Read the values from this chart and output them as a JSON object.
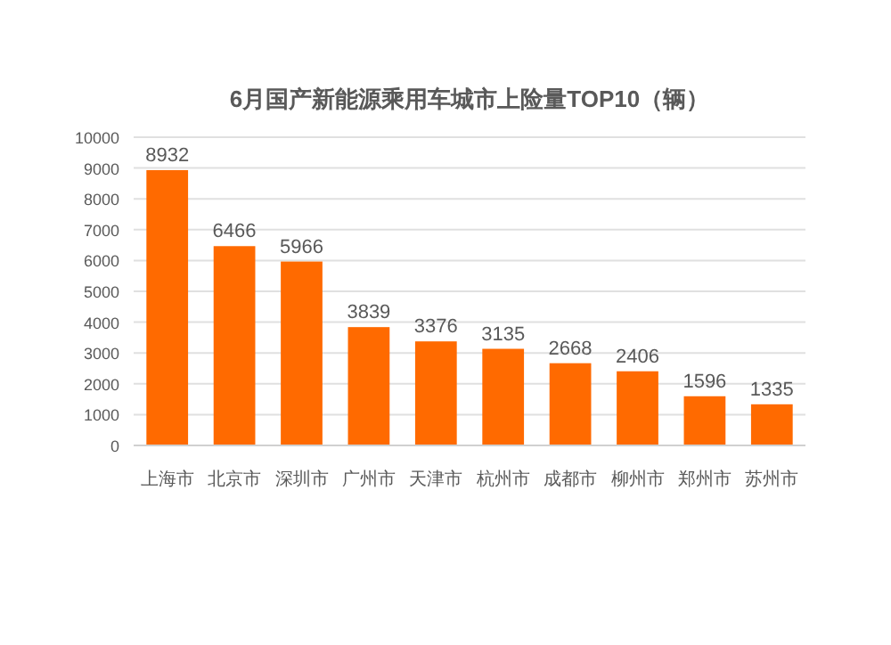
{
  "chart_data": {
    "type": "bar",
    "title": "6月国产新能源乘用车城市上险量TOP10（辆）",
    "categories": [
      "上海市",
      "北京市",
      "深圳市",
      "广州市",
      "天津市",
      "杭州市",
      "成都市",
      "柳州市",
      "郑州市",
      "苏州市"
    ],
    "values": [
      8932,
      6466,
      5966,
      3839,
      3376,
      3135,
      2668,
      2406,
      1596,
      1335
    ],
    "color": "#ff6a00",
    "ylim": [
      0,
      10000
    ],
    "yticks": [
      0,
      1000,
      2000,
      3000,
      4000,
      5000,
      6000,
      7000,
      8000,
      9000,
      10000
    ],
    "grid": "y",
    "data_labels": true
  }
}
